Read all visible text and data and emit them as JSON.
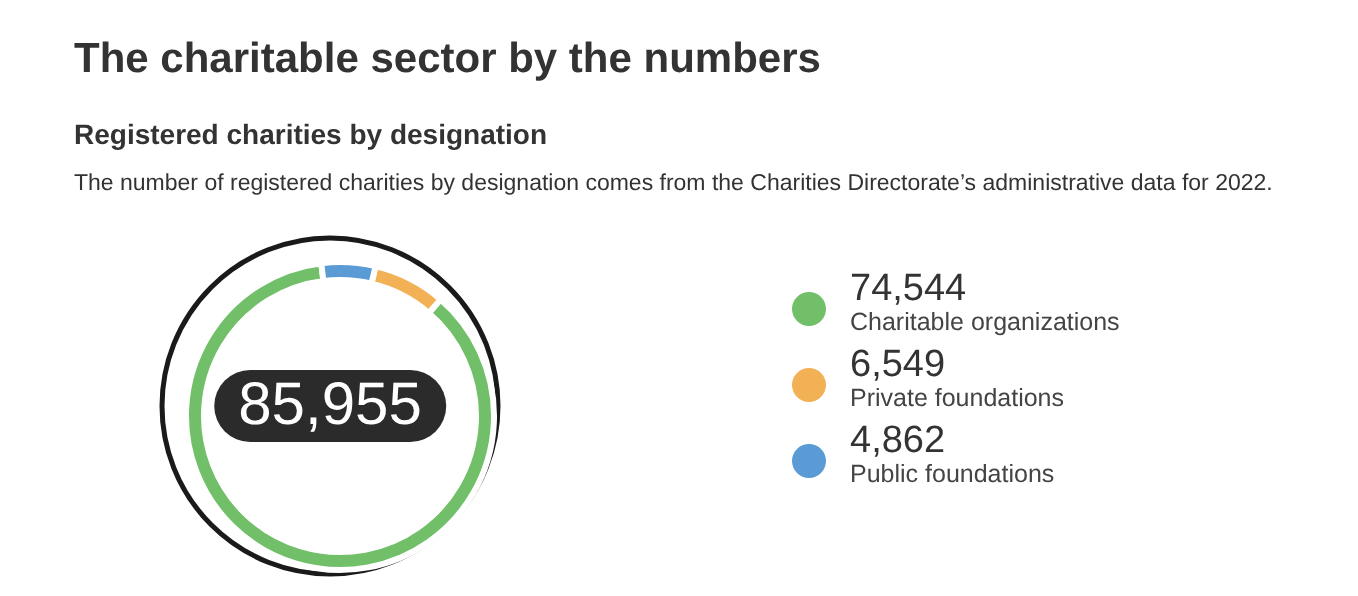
{
  "chart_data": {
    "type": "donut",
    "title": "The charitable sector by the numbers",
    "subtitle": "Registered charities by designation",
    "annotations": [
      "The number of registered charities by designation comes from the Charities Directorate’s administrative data for 2022.",
      "85,955"
    ],
    "categories": [
      "Charitable organizations",
      "Private foundations",
      "Public foundations"
    ],
    "values": [
      74544,
      6549,
      4862
    ],
    "colors": [
      "#72bf6a",
      "#f2b155",
      "#5b9bd5"
    ],
    "value_labels": [
      "74,544",
      "6,549",
      "4,862"
    ],
    "legend": "right"
  }
}
